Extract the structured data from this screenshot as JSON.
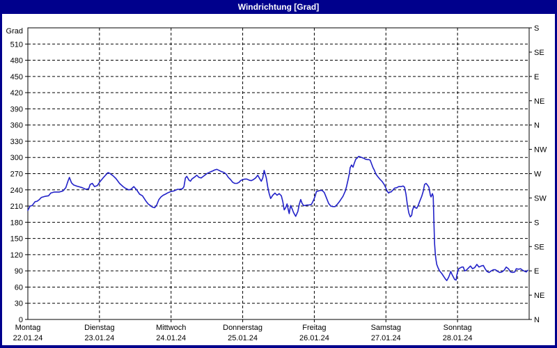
{
  "window": {
    "title": "Windrichtung [Grad]"
  },
  "colors": {
    "titlebar_bg": "#00008c",
    "border": "#00008c",
    "title_text": "#ffffff",
    "plot_bg": "#ffffff",
    "grid": "#000000",
    "axis": "#000000",
    "line": "#2121c8"
  },
  "chart_data": {
    "type": "line",
    "title": "Windrichtung [Grad]",
    "ylabel": "Grad",
    "ylim": [
      0,
      540
    ],
    "y_tick_step": 30,
    "grid": "dashed",
    "y_ticks_left": [
      0,
      30,
      60,
      90,
      120,
      150,
      180,
      210,
      240,
      270,
      300,
      330,
      360,
      390,
      420,
      450,
      480,
      510
    ],
    "y_right_labels": [
      {
        "deg": 540,
        "label": "S"
      },
      {
        "deg": 495,
        "label": "SE"
      },
      {
        "deg": 450,
        "label": "E"
      },
      {
        "deg": 405,
        "label": "NE"
      },
      {
        "deg": 360,
        "label": "N"
      },
      {
        "deg": 315,
        "label": "NW"
      },
      {
        "deg": 270,
        "label": "W"
      },
      {
        "deg": 225,
        "label": "SW"
      },
      {
        "deg": 180,
        "label": "S"
      },
      {
        "deg": 135,
        "label": "SE"
      },
      {
        "deg": 90,
        "label": "E"
      },
      {
        "deg": 45,
        "label": "NE"
      },
      {
        "deg": 0,
        "label": "N"
      }
    ],
    "x_days": [
      {
        "weekday": "Montag",
        "date": "22.01.24"
      },
      {
        "weekday": "Dienstag",
        "date": "23.01.24"
      },
      {
        "weekday": "Mittwoch",
        "date": "24.01.24"
      },
      {
        "weekday": "Donnerstag",
        "date": "25.01.24"
      },
      {
        "weekday": "Freitag",
        "date": "26.01.24"
      },
      {
        "weekday": "Samstag",
        "date": "27.01.24"
      },
      {
        "weekday": "Sonntag",
        "date": "28.01.24"
      }
    ],
    "series": [
      {
        "name": "Windrichtung",
        "points": [
          [
            0.0,
            202
          ],
          [
            0.03,
            210
          ],
          [
            0.06,
            211
          ],
          [
            0.1,
            218
          ],
          [
            0.13,
            219
          ],
          [
            0.16,
            222
          ],
          [
            0.19,
            226
          ],
          [
            0.24,
            228
          ],
          [
            0.29,
            229
          ],
          [
            0.32,
            234
          ],
          [
            0.37,
            236
          ],
          [
            0.44,
            236
          ],
          [
            0.49,
            238
          ],
          [
            0.53,
            244
          ],
          [
            0.56,
            256
          ],
          [
            0.58,
            263
          ],
          [
            0.61,
            253
          ],
          [
            0.64,
            249
          ],
          [
            0.68,
            247
          ],
          [
            0.71,
            246
          ],
          [
            0.76,
            244
          ],
          [
            0.81,
            241
          ],
          [
            0.85,
            242
          ],
          [
            0.87,
            250
          ],
          [
            0.9,
            252
          ],
          [
            0.93,
            246
          ],
          [
            0.97,
            248
          ],
          [
            1.0,
            254
          ],
          [
            1.05,
            262
          ],
          [
            1.09,
            268
          ],
          [
            1.12,
            272
          ],
          [
            1.15,
            270
          ],
          [
            1.19,
            266
          ],
          [
            1.23,
            261
          ],
          [
            1.28,
            252
          ],
          [
            1.33,
            246
          ],
          [
            1.36,
            243
          ],
          [
            1.41,
            240
          ],
          [
            1.44,
            241
          ],
          [
            1.48,
            246
          ],
          [
            1.52,
            240
          ],
          [
            1.56,
            232
          ],
          [
            1.6,
            229
          ],
          [
            1.65,
            219
          ],
          [
            1.68,
            214
          ],
          [
            1.71,
            211
          ],
          [
            1.74,
            208
          ],
          [
            1.77,
            207
          ],
          [
            1.8,
            212
          ],
          [
            1.83,
            222
          ],
          [
            1.86,
            227
          ],
          [
            1.89,
            230
          ],
          [
            1.92,
            232
          ],
          [
            1.96,
            235
          ],
          [
            2.0,
            237
          ],
          [
            2.04,
            238
          ],
          [
            2.09,
            241
          ],
          [
            2.12,
            241
          ],
          [
            2.16,
            242
          ],
          [
            2.18,
            246
          ],
          [
            2.2,
            262
          ],
          [
            2.22,
            265
          ],
          [
            2.25,
            258
          ],
          [
            2.27,
            256
          ],
          [
            2.29,
            260
          ],
          [
            2.33,
            264
          ],
          [
            2.36,
            267
          ],
          [
            2.39,
            263
          ],
          [
            2.42,
            262
          ],
          [
            2.46,
            266
          ],
          [
            2.5,
            270
          ],
          [
            2.53,
            272
          ],
          [
            2.58,
            275
          ],
          [
            2.61,
            277
          ],
          [
            2.64,
            278
          ],
          [
            2.67,
            276
          ],
          [
            2.7,
            274
          ],
          [
            2.74,
            272
          ],
          [
            2.77,
            269
          ],
          [
            2.8,
            263
          ],
          [
            2.83,
            259
          ],
          [
            2.86,
            254
          ],
          [
            2.89,
            252
          ],
          [
            2.92,
            252
          ],
          [
            2.95,
            254
          ],
          [
            2.97,
            257
          ],
          [
            3.0,
            259
          ],
          [
            3.03,
            260
          ],
          [
            3.06,
            260
          ],
          [
            3.09,
            258
          ],
          [
            3.12,
            257
          ],
          [
            3.15,
            259
          ],
          [
            3.18,
            262
          ],
          [
            3.21,
            267
          ],
          [
            3.24,
            260
          ],
          [
            3.26,
            256
          ],
          [
            3.28,
            262
          ],
          [
            3.3,
            276
          ],
          [
            3.33,
            262
          ],
          [
            3.35,
            245
          ],
          [
            3.37,
            233
          ],
          [
            3.39,
            224
          ],
          [
            3.42,
            230
          ],
          [
            3.45,
            234
          ],
          [
            3.48,
            230
          ],
          [
            3.51,
            233
          ],
          [
            3.54,
            229
          ],
          [
            3.56,
            218
          ],
          [
            3.58,
            203
          ],
          [
            3.6,
            207
          ],
          [
            3.62,
            214
          ],
          [
            3.64,
            201
          ],
          [
            3.65,
            196
          ],
          [
            3.66,
            205
          ],
          [
            3.67,
            211
          ],
          [
            3.69,
            205
          ],
          [
            3.71,
            198
          ],
          [
            3.74,
            191
          ],
          [
            3.77,
            200
          ],
          [
            3.79,
            213
          ],
          [
            3.81,
            222
          ],
          [
            3.83,
            215
          ],
          [
            3.85,
            211
          ],
          [
            3.87,
            211
          ],
          [
            3.9,
            212
          ],
          [
            3.93,
            212
          ],
          [
            3.96,
            213
          ],
          [
            3.99,
            221
          ],
          [
            4.01,
            228
          ],
          [
            4.03,
            237
          ],
          [
            4.06,
            238
          ],
          [
            4.08,
            239
          ],
          [
            4.11,
            239
          ],
          [
            4.14,
            235
          ],
          [
            4.17,
            225
          ],
          [
            4.2,
            215
          ],
          [
            4.23,
            210
          ],
          [
            4.26,
            209
          ],
          [
            4.29,
            209
          ],
          [
            4.32,
            213
          ],
          [
            4.35,
            218
          ],
          [
            4.37,
            222
          ],
          [
            4.4,
            228
          ],
          [
            4.43,
            237
          ],
          [
            4.45,
            246
          ],
          [
            4.47,
            258
          ],
          [
            4.49,
            270
          ],
          [
            4.5,
            281
          ],
          [
            4.52,
            286
          ],
          [
            4.54,
            282
          ],
          [
            4.56,
            290
          ],
          [
            4.58,
            297
          ],
          [
            4.6,
            299
          ],
          [
            4.62,
            302
          ],
          [
            4.64,
            301
          ],
          [
            4.66,
            300
          ],
          [
            4.68,
            299
          ],
          [
            4.7,
            298
          ],
          [
            4.71,
            297
          ],
          [
            4.74,
            296
          ],
          [
            4.76,
            296
          ],
          [
            4.78,
            295
          ],
          [
            4.8,
            288
          ],
          [
            4.82,
            281
          ],
          [
            4.84,
            276
          ],
          [
            4.86,
            269
          ],
          [
            4.89,
            264
          ],
          [
            4.92,
            259
          ],
          [
            4.95,
            255
          ],
          [
            4.98,
            249
          ],
          [
            5.0,
            243
          ],
          [
            5.02,
            237
          ],
          [
            5.04,
            234
          ],
          [
            5.05,
            236
          ],
          [
            5.07,
            236
          ],
          [
            5.1,
            240
          ],
          [
            5.12,
            243
          ],
          [
            5.15,
            244
          ],
          [
            5.18,
            246
          ],
          [
            5.21,
            246
          ],
          [
            5.24,
            247
          ],
          [
            5.26,
            245
          ],
          [
            5.28,
            232
          ],
          [
            5.3,
            212
          ],
          [
            5.32,
            197
          ],
          [
            5.34,
            190
          ],
          [
            5.36,
            193
          ],
          [
            5.37,
            202
          ],
          [
            5.39,
            209
          ],
          [
            5.41,
            207
          ],
          [
            5.43,
            206
          ],
          [
            5.45,
            211
          ],
          [
            5.47,
            218
          ],
          [
            5.5,
            228
          ],
          [
            5.52,
            237
          ],
          [
            5.54,
            250
          ],
          [
            5.56,
            252
          ],
          [
            5.58,
            249
          ],
          [
            5.6,
            245
          ],
          [
            5.62,
            230
          ],
          [
            5.63,
            227
          ],
          [
            5.65,
            233
          ],
          [
            5.66,
            228
          ],
          [
            5.665,
            205
          ],
          [
            5.67,
            181
          ],
          [
            5.675,
            160
          ],
          [
            5.68,
            140
          ],
          [
            5.69,
            120
          ],
          [
            5.7,
            110
          ],
          [
            5.71,
            102
          ],
          [
            5.73,
            95
          ],
          [
            5.75,
            90
          ],
          [
            5.78,
            85
          ],
          [
            5.81,
            79
          ],
          [
            5.83,
            75
          ],
          [
            5.85,
            72
          ],
          [
            5.875,
            78
          ],
          [
            5.89,
            83
          ],
          [
            5.905,
            89
          ],
          [
            5.92,
            84
          ],
          [
            5.94,
            79
          ],
          [
            5.96,
            74
          ],
          [
            5.98,
            73
          ],
          [
            5.99,
            82
          ],
          [
            6.01,
            93
          ],
          [
            6.03,
            95
          ],
          [
            6.06,
            97
          ],
          [
            6.08,
            97
          ],
          [
            6.1,
            90
          ],
          [
            6.12,
            91
          ],
          [
            6.15,
            95
          ],
          [
            6.18,
            99
          ],
          [
            6.21,
            94
          ],
          [
            6.24,
            96
          ],
          [
            6.27,
            102
          ],
          [
            6.3,
            97
          ],
          [
            6.33,
            99
          ],
          [
            6.36,
            100
          ],
          [
            6.38,
            95
          ],
          [
            6.41,
            89
          ],
          [
            6.44,
            87
          ],
          [
            6.47,
            90
          ],
          [
            6.5,
            92
          ],
          [
            6.53,
            92
          ],
          [
            6.56,
            89
          ],
          [
            6.59,
            87
          ],
          [
            6.62,
            88
          ],
          [
            6.65,
            91
          ],
          [
            6.68,
            97
          ],
          [
            6.71,
            94
          ],
          [
            6.74,
            88
          ],
          [
            6.77,
            87
          ],
          [
            6.8,
            88
          ],
          [
            6.82,
            94
          ],
          [
            6.85,
            93
          ],
          [
            6.88,
            94
          ],
          [
            6.91,
            91
          ],
          [
            6.94,
            89
          ],
          [
            6.96,
            88
          ],
          [
            6.98,
            91
          ]
        ]
      }
    ]
  }
}
